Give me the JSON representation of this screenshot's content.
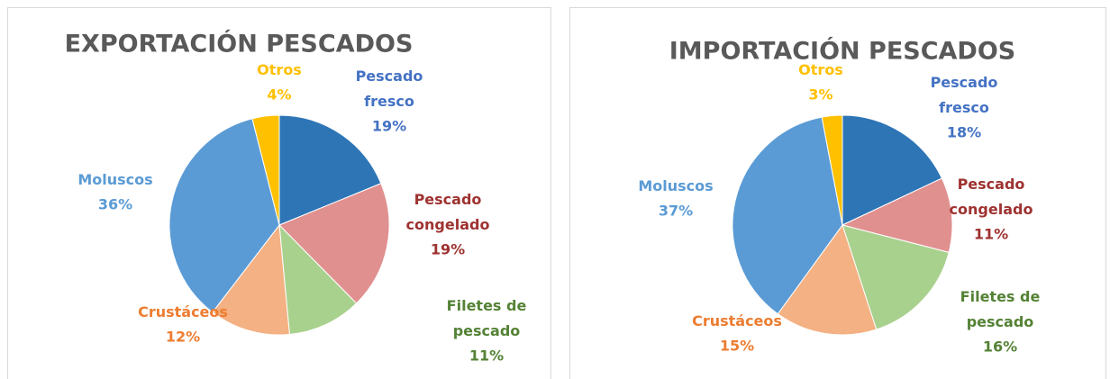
{
  "chart_data": [
    {
      "type": "pie",
      "title": "EXPORTACIÓN PESCADOS",
      "categories": [
        "Pescado fresco",
        "Pescado congelado",
        "Filetes de pescado",
        "Crustáceos",
        "Moluscos",
        "Otros"
      ],
      "values": [
        19,
        19,
        11,
        12,
        36,
        4
      ],
      "value_labels": [
        "19%",
        "19%",
        "11%",
        "12%",
        "36%",
        "4%"
      ],
      "colors": [
        "#2e75b6",
        "#e0908f",
        "#a9d18e",
        "#f4b183",
        "#5b9bd5",
        "#ffc000"
      ],
      "label_colors": [
        "#4472c4",
        "#9e3230",
        "#548235",
        "#ed7d31",
        "#5b9bd5",
        "#ffc000"
      ]
    },
    {
      "type": "pie",
      "title": "IMPORTACIÓN PESCADOS",
      "categories": [
        "Pescado fresco",
        "Pescado congelado",
        "Filetes de pescado",
        "Crustáceos",
        "Moluscos",
        "Otros"
      ],
      "values": [
        18,
        11,
        16,
        15,
        37,
        3
      ],
      "value_labels": [
        "18%",
        "11%",
        "16%",
        "15%",
        "37%",
        "3%"
      ],
      "colors": [
        "#2e75b6",
        "#e0908f",
        "#a9d18e",
        "#f4b183",
        "#5b9bd5",
        "#ffc000"
      ],
      "label_colors": [
        "#4472c4",
        "#9e3230",
        "#548235",
        "#ed7d31",
        "#5b9bd5",
        "#ffc000"
      ]
    }
  ]
}
